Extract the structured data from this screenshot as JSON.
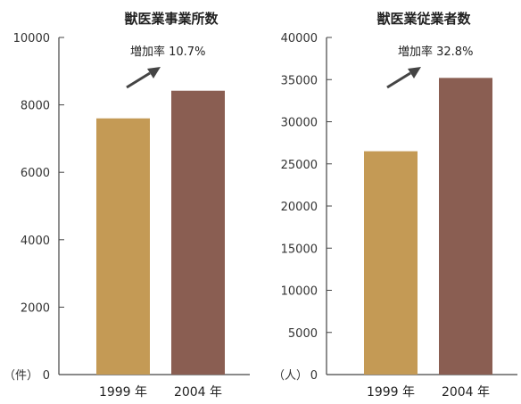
{
  "chart_data": [
    {
      "type": "bar",
      "title": "獣医業事業所数",
      "unit_label": "（件）",
      "categories": [
        "1999 年",
        "2004 年"
      ],
      "values": [
        7600,
        8420
      ],
      "ylim": [
        0,
        10000
      ],
      "yticks": [
        "0",
        "2000",
        "4000",
        "6000",
        "8000",
        "10000"
      ],
      "annotation": "増加率 10.7%",
      "bar_colors": [
        "#c49a55",
        "#8a5e52"
      ],
      "grid": false
    },
    {
      "type": "bar",
      "title": "獣医業従業者数",
      "unit_label": "（人）",
      "categories": [
        "1999 年",
        "2004 年"
      ],
      "values": [
        26500,
        35200
      ],
      "ylim": [
        0,
        40000
      ],
      "yticks": [
        "0",
        "5000",
        "10000",
        "15000",
        "20000",
        "25000",
        "30000",
        "35000",
        "40000"
      ],
      "annotation": "増加率 32.8%",
      "bar_colors": [
        "#c49a55",
        "#8a5e52"
      ],
      "grid": false
    }
  ]
}
